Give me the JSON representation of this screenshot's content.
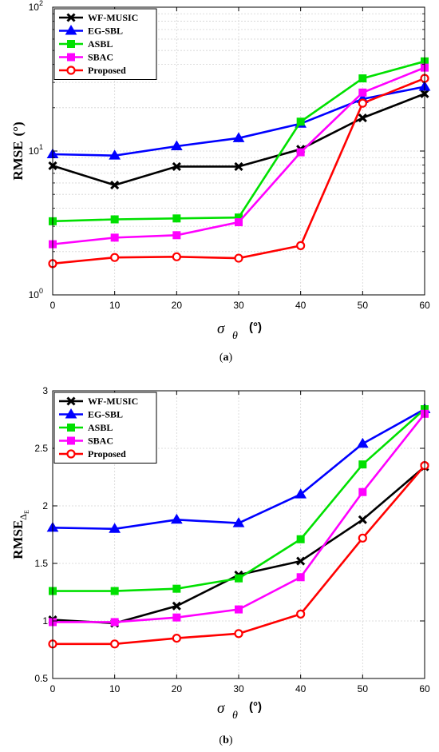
{
  "chart_data": [
    {
      "type": "line",
      "panel": "a",
      "caption_open": "(",
      "caption_letter": "a",
      "caption_close": ")",
      "ylabel": "RMSE",
      "yunit": "(°)",
      "xlabel_symbol": "σ",
      "xlabel_sub": "θ",
      "xunit": "(°)",
      "yscale": "log",
      "ylim": [
        1,
        100
      ],
      "y_tick_bases": [
        "10",
        "10",
        "10"
      ],
      "y_tick_exps": [
        "0",
        "1",
        "2"
      ],
      "x": [
        0,
        10,
        20,
        30,
        40,
        50,
        60
      ],
      "x_tick_labels": [
        "0",
        "10",
        "20",
        "30",
        "40",
        "50",
        "60"
      ],
      "xlim": [
        0,
        60
      ],
      "grid": true,
      "legend_position": "top-left",
      "series": [
        {
          "name": "WF-MUSIC",
          "color": "#000000",
          "marker": "x",
          "values": [
            7.9,
            5.8,
            7.8,
            7.8,
            10.3,
            17,
            25
          ]
        },
        {
          "name": "EG-SBL",
          "color": "#0000ff",
          "marker": "triangle",
          "values": [
            9.5,
            9.3,
            10.8,
            12.3,
            15.5,
            23,
            28
          ]
        },
        {
          "name": "ASBL",
          "color": "#00e000",
          "marker": "square",
          "values": [
            3.25,
            3.35,
            3.4,
            3.45,
            16,
            32,
            42
          ]
        },
        {
          "name": "SBAC",
          "color": "#ff00ff",
          "marker": "square",
          "values": [
            2.25,
            2.5,
            2.6,
            3.2,
            9.8,
            25.5,
            38
          ]
        },
        {
          "name": "Proposed",
          "color": "#ff0000",
          "marker": "circle",
          "values": [
            1.65,
            1.82,
            1.84,
            1.8,
            2.2,
            21.5,
            32
          ]
        }
      ]
    },
    {
      "type": "line",
      "panel": "b",
      "caption_open": "(",
      "caption_letter": "b",
      "caption_close": ")",
      "ylabel": "RMSE",
      "ylabel_sub": "Δ",
      "ylabel_subsub": "E",
      "xlabel_symbol": "σ",
      "xlabel_sub": "θ",
      "xunit": "(°)",
      "yscale": "linear",
      "ylim": [
        0.5,
        3
      ],
      "y_tick_labels": [
        "0.5",
        "1",
        "1.5",
        "2",
        "2.5",
        "3"
      ],
      "x": [
        0,
        10,
        20,
        30,
        40,
        50,
        60
      ],
      "x_tick_labels": [
        "0",
        "10",
        "20",
        "30",
        "40",
        "50",
        "60"
      ],
      "xlim": [
        0,
        60
      ],
      "grid": true,
      "legend_position": "top-left",
      "series": [
        {
          "name": "WF-MUSIC",
          "color": "#000000",
          "marker": "x",
          "values": [
            1.01,
            0.98,
            1.13,
            1.4,
            1.52,
            1.88,
            2.34
          ]
        },
        {
          "name": "EG-SBL",
          "color": "#0000ff",
          "marker": "triangle",
          "values": [
            1.81,
            1.8,
            1.88,
            1.85,
            2.1,
            2.54,
            2.84
          ]
        },
        {
          "name": "ASBL",
          "color": "#00e000",
          "marker": "square",
          "values": [
            1.26,
            1.26,
            1.28,
            1.37,
            1.71,
            2.36,
            2.84
          ]
        },
        {
          "name": "SBAC",
          "color": "#ff00ff",
          "marker": "square",
          "values": [
            0.99,
            0.99,
            1.03,
            1.1,
            1.38,
            2.12,
            2.8
          ]
        },
        {
          "name": "Proposed",
          "color": "#ff0000",
          "marker": "circle",
          "values": [
            0.8,
            0.8,
            0.85,
            0.89,
            1.06,
            1.72,
            2.35
          ]
        }
      ]
    }
  ]
}
